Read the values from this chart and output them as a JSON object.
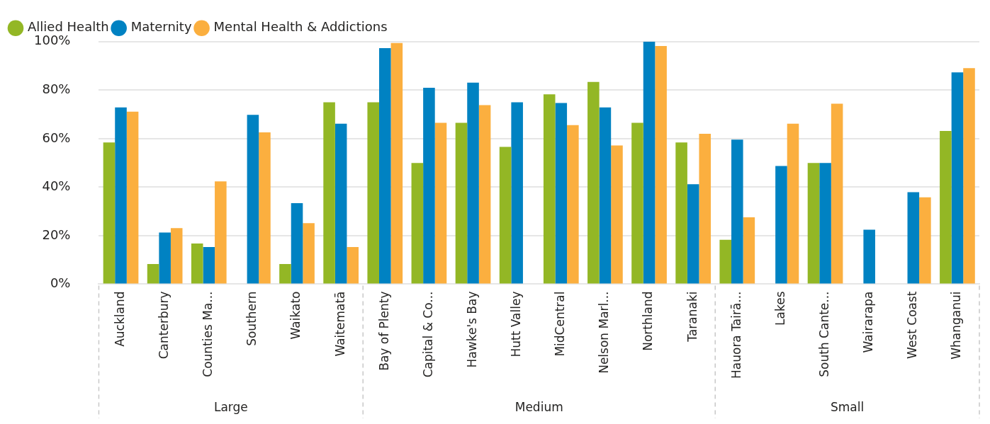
{
  "chart_data": {
    "type": "bar",
    "categories": [
      "Auckland",
      "Canterbury",
      "Counties Ma...",
      "Southern",
      "Waikato",
      "Waitematā",
      "Bay of Plenty",
      "Capital & Co...",
      "Hawke's Bay",
      "Hutt Valley",
      "MidCentral",
      "Nelson Marl...",
      "Northland",
      "Taranaki",
      "Hauora Tairā...",
      "Lakes",
      "South Cante...",
      "Wairarapa",
      "West Coast",
      "Whanganui"
    ],
    "series": [
      {
        "name": "Allied Health",
        "color": "#93b725",
        "values": [
          58.4,
          8.3,
          16.8,
          null,
          8.3,
          75.0,
          75.0,
          50.0,
          66.5,
          56.6,
          78.3,
          83.4,
          66.5,
          58.4,
          18.3,
          null,
          50.0,
          null,
          null,
          63.2
        ]
      },
      {
        "name": "Maternity",
        "color": "#0082c2",
        "values": [
          72.9,
          21.3,
          15.3,
          69.8,
          33.4,
          66.2,
          97.3,
          81.0,
          83.1,
          75.0,
          74.7,
          72.9,
          100,
          41.2,
          59.6,
          48.7,
          50.0,
          22.5,
          37.9,
          87.3
        ]
      },
      {
        "name": "Mental Health & Addictions",
        "color": "#fbaf3f",
        "values": [
          71.1,
          23.1,
          42.4,
          62.6,
          25.2,
          15.3,
          99.4,
          66.5,
          73.8,
          null,
          65.6,
          57.2,
          98.2,
          62.0,
          27.6,
          66.2,
          74.4,
          null,
          35.8,
          89.1
        ]
      }
    ],
    "ylim": [
      0,
      100
    ],
    "yticks": [
      {
        "value": 0,
        "label": "0%"
      },
      {
        "value": 20,
        "label": "20%"
      },
      {
        "value": 40,
        "label": "40%"
      },
      {
        "value": 60,
        "label": "60%"
      },
      {
        "value": 80,
        "label": "80%"
      },
      {
        "value": 100,
        "label": "100%"
      }
    ],
    "grid": "y",
    "legend": "top left",
    "annotations": [
      "Large",
      "Medium",
      "Small"
    ]
  }
}
